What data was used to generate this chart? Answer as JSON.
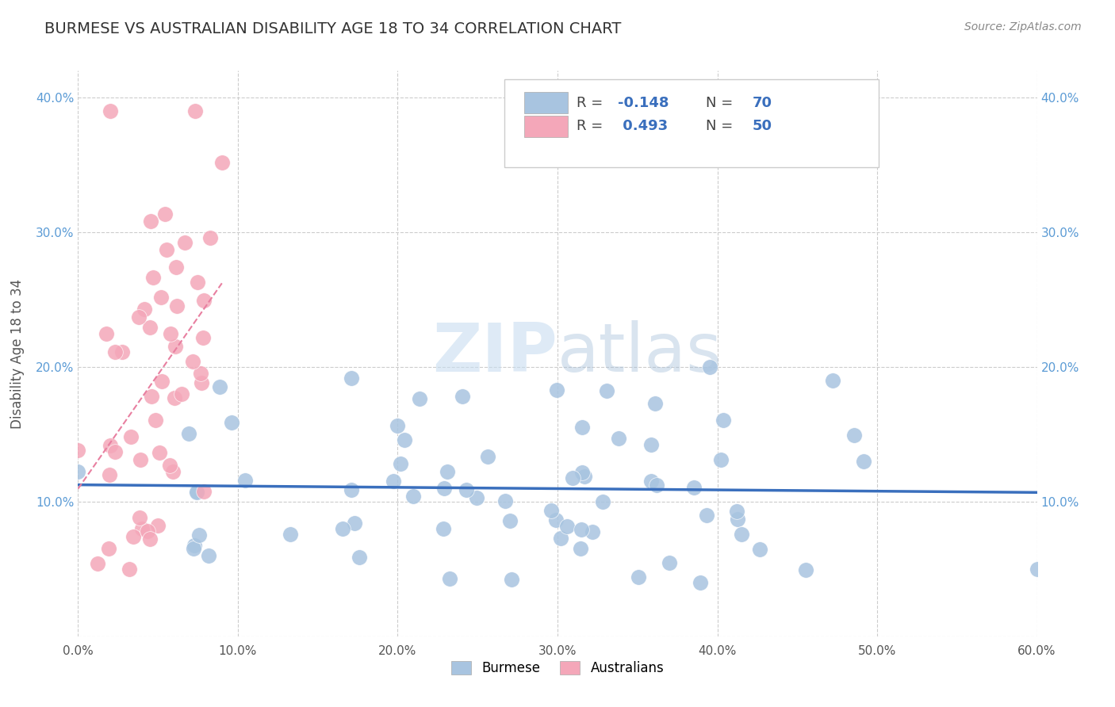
{
  "title": "BURMESE VS AUSTRALIAN DISABILITY AGE 18 TO 34 CORRELATION CHART",
  "source_text": "Source: ZipAtlas.com",
  "xlabel": "",
  "ylabel": "Disability Age 18 to 34",
  "xlim": [
    0.0,
    0.6
  ],
  "ylim": [
    0.0,
    0.42
  ],
  "xticks": [
    0.0,
    0.1,
    0.2,
    0.3,
    0.4,
    0.5,
    0.6
  ],
  "yticks": [
    0.0,
    0.1,
    0.2,
    0.3,
    0.4
  ],
  "xticklabels": [
    "0.0%",
    "10.0%",
    "20.0%",
    "30.0%",
    "40.0%",
    "50.0%",
    "60.0%"
  ],
  "yticklabels": [
    "",
    "10.0%",
    "20.0%",
    "30.0%",
    "40.0%"
  ],
  "right_yticklabels": [
    "",
    "10.0%",
    "20.0%",
    "30.0%",
    "40.0%"
  ],
  "burmese_color": "#a8c4e0",
  "australian_color": "#f4a7b9",
  "burmese_line_color": "#3a6fbd",
  "australian_line_color": "#e87fa0",
  "burmese_R": -0.148,
  "burmese_N": 70,
  "australian_R": 0.493,
  "australian_N": 50,
  "watermark_zip": "ZIP",
  "watermark_atlas": "atlas"
}
